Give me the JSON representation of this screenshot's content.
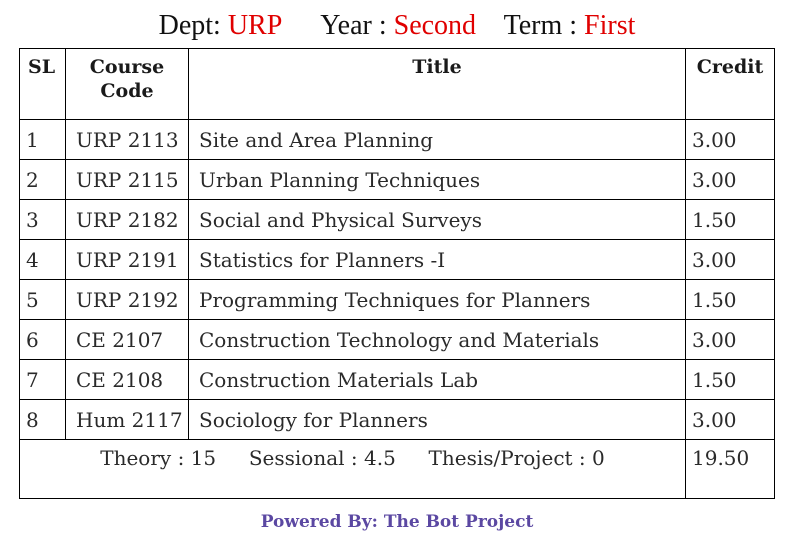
{
  "header": {
    "dept_label": "Dept:",
    "dept_value": "URP",
    "year_label": "Year :",
    "year_value": "Second",
    "term_label": "Term :",
    "term_value": "First"
  },
  "table": {
    "columns": [
      "SL",
      "Course Code",
      "Title",
      "Credit"
    ],
    "rows": [
      {
        "sl": "1",
        "code": "URP 2113",
        "title": "Site and Area Planning",
        "credit": "3.00"
      },
      {
        "sl": "2",
        "code": "URP 2115",
        "title": "Urban Planning Techniques",
        "credit": "3.00"
      },
      {
        "sl": "3",
        "code": "URP 2182",
        "title": "Social and Physical Surveys",
        "credit": "1.50"
      },
      {
        "sl": "4",
        "code": "URP 2191",
        "title": "Statistics for Planners -I",
        "credit": "3.00"
      },
      {
        "sl": "5",
        "code": "URP 2192",
        "title": "Programming Techniques for Planners",
        "credit": "1.50"
      },
      {
        "sl": "6",
        "code": "CE 2107",
        "title": "Construction Technology and Materials",
        "credit": "3.00"
      },
      {
        "sl": "7",
        "code": "CE 2108",
        "title": "Construction Materials Lab",
        "credit": "1.50"
      },
      {
        "sl": "8",
        "code": "Hum 2117",
        "title": "Sociology for Planners",
        "credit": "3.00"
      }
    ],
    "summary": {
      "theory": "Theory : 15",
      "sessional": "Sessional : 4.5",
      "thesis": "Thesis/Project : 0",
      "total_credit": "19.50"
    }
  },
  "footer": {
    "text": "Powered By: The Bot Project"
  },
  "colors": {
    "accent_red": "#e00000",
    "footer_purple": "#5b48a2"
  }
}
